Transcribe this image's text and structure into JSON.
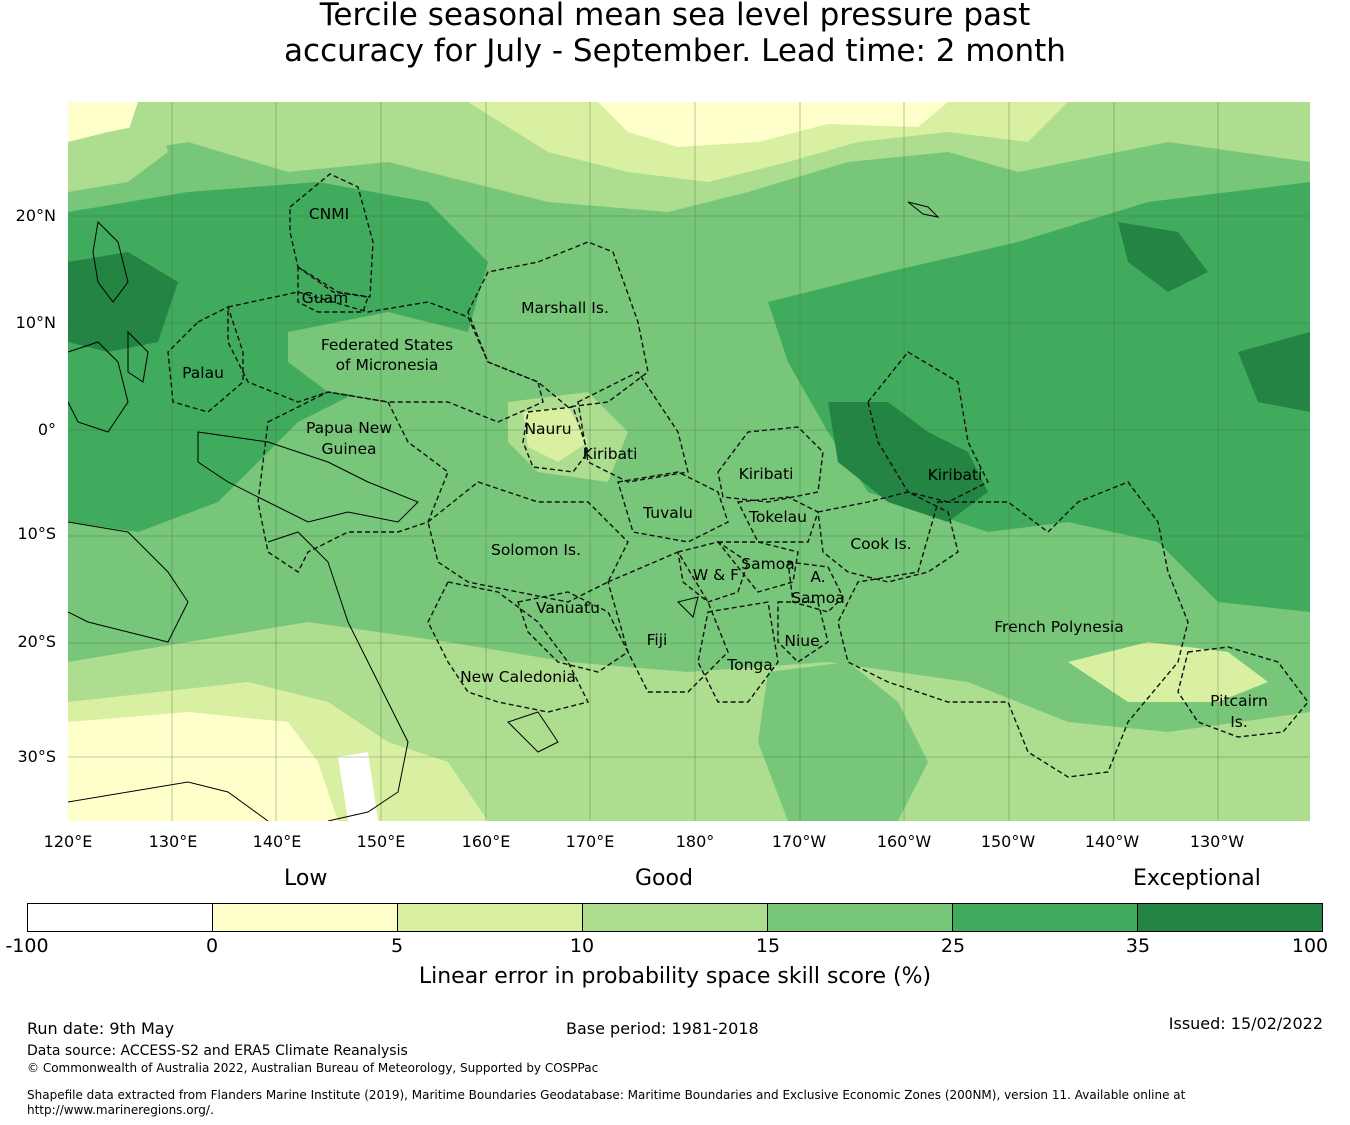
{
  "title": {
    "line1": "Tercile seasonal mean sea level pressure past",
    "line2": "accuracy for July - September. Lead time: 2 month"
  },
  "axes": {
    "lat_ticks": [
      "20°N",
      "10°N",
      "0°",
      "10°S",
      "20°S",
      "30°S"
    ],
    "lon_ticks": [
      "120°E",
      "130°E",
      "140°E",
      "150°E",
      "160°E",
      "170°E",
      "180°",
      "170°W",
      "160°W",
      "150°W",
      "140°W",
      "130°W"
    ]
  },
  "regions": [
    "CNMI",
    "Guam",
    "Marshall Is.",
    "Federated States",
    "of Micronesia",
    "Palau",
    "Papua New",
    "Guinea",
    "Nauru",
    "Kiribati",
    "Kiribati",
    "Kiribati",
    "Tuvalu",
    "Tokelau",
    "Cook Is.",
    "Solomon Is.",
    "Samoa",
    "W & F",
    "A.",
    "Samoa",
    "Vanuatu",
    "Fiji",
    "Niue",
    "Tonga",
    "French Polynesia",
    "New Caledonia",
    "Pitcairn",
    "Is."
  ],
  "legend": {
    "categories": [
      "Low",
      "Good",
      "Exceptional"
    ],
    "ticks": [
      "-100",
      "0",
      "5",
      "10",
      "15",
      "25",
      "35",
      "100"
    ],
    "colors": [
      "#ffffff",
      "#ffffcc",
      "#d9f0a3",
      "#addd8e",
      "#78c679",
      "#41ab5d",
      "#238443"
    ],
    "label": "Linear error in probability space skill score (%)"
  },
  "footer": {
    "run_date": "Run date: 9th May",
    "base_period": "Base period: 1981-2018",
    "issued": "Issued: 15/02/2022",
    "data_source": "Data source: ACCESS-S2 and ERA5 Climate Reanalysis",
    "copyright": "© Commonwealth of Australia 2022, Australian Bureau of Meteorology, Supported by COSPPac",
    "shapefile_line1": "Shapefile data extracted from Flanders Marine Institute (2019), Maritime Boundaries Geodatabase: Maritime Boundaries and Exclusive Economic Zones (200NM), version 11. Available online at",
    "shapefile_line2": "http://www.marineregions.org/."
  }
}
